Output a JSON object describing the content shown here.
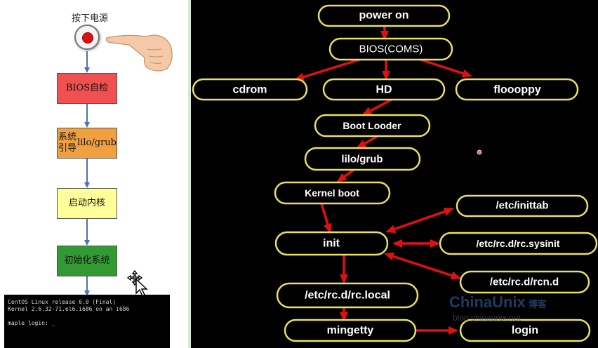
{
  "left_flow": {
    "power_label": "按下电源",
    "terminal_lines": [
      "CentOS Linux release 6.0 (Final)",
      "Kernel 2.6.32-71.el6.i686 on an i686",
      "",
      "maple login: _"
    ],
    "steps": [
      {
        "lines": [
          "BIOS自检"
        ],
        "color": "#f05050"
      },
      {
        "lines": [
          "系统引导",
          "lilo/grub"
        ],
        "color": "#f0a040"
      },
      {
        "lines": [
          "启动内核"
        ],
        "color": "#ffff99"
      },
      {
        "lines": [
          "初始化系统"
        ],
        "color": "#339933"
      }
    ]
  },
  "boot_diagram": {
    "node_border_color": "#e8e060",
    "arrow_color": "#e01010",
    "nodes": {
      "power_on": "power on",
      "bios": "BIOS(COMS)",
      "cdrom": "cdrom",
      "hd": "HD",
      "floppy": "floooppy",
      "boot_loader": "Boot Looder",
      "lilo_grub": "lilo/grub",
      "kernel_boot": "Kernel boot",
      "init": "init",
      "inittab": "/etc/inittab",
      "rc_sysinit": "/etc/rc.d/rc.sysinit",
      "rcn_d": "/etc/rc.d/rcn.d",
      "rc_local": "/etc/rc.d/rc.local",
      "mingetty": "mingetty",
      "login": "login"
    }
  },
  "watermark": {
    "brand": "ChinaUnix",
    "cn": "博客",
    "url": "blog.chinaunix.net"
  }
}
